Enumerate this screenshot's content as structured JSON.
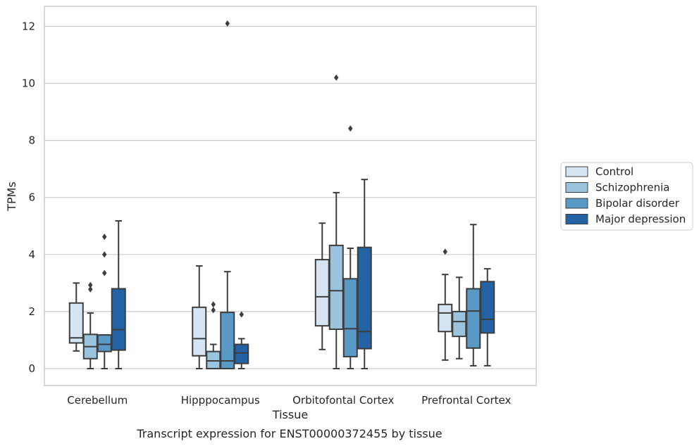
{
  "chart_data": {
    "type": "box",
    "title": "Transcript expression for ENST00000372455 by tissue",
    "xlabel": "Tissue",
    "ylabel": "TPMs",
    "ylim": [
      -0.6,
      12.7
    ],
    "yticks": [
      0,
      2,
      4,
      6,
      8,
      10,
      12
    ],
    "grid": "horizontal",
    "legend_position": "right",
    "categories": [
      "Cerebellum",
      "Hipppocampus",
      "Orbitofontal Cortex",
      "Prefrontal Cortex"
    ],
    "series": [
      {
        "name": "Control",
        "color": "#d6e5f3",
        "boxes": [
          {
            "whislo": 0.62,
            "q1": 0.9,
            "med": 1.08,
            "q3": 2.3,
            "whishi": 3.0,
            "fliers": []
          },
          {
            "whislo": 0.0,
            "q1": 0.45,
            "med": 1.05,
            "q3": 2.15,
            "whishi": 3.6,
            "fliers": []
          },
          {
            "whislo": 0.67,
            "q1": 1.5,
            "med": 2.52,
            "q3": 3.82,
            "whishi": 5.1,
            "fliers": []
          },
          {
            "whislo": 0.3,
            "q1": 1.3,
            "med": 1.95,
            "q3": 2.25,
            "whishi": 3.3,
            "fliers": [
              4.1
            ]
          }
        ]
      },
      {
        "name": "Schizophrenia",
        "color": "#9ac3de",
        "boxes": [
          {
            "whislo": 0.0,
            "q1": 0.35,
            "med": 0.77,
            "q3": 1.2,
            "whishi": 1.95,
            "fliers": [
              2.78,
              2.93
            ]
          },
          {
            "whislo": 0.0,
            "q1": 0.0,
            "med": 0.27,
            "q3": 0.6,
            "whishi": 0.85,
            "fliers": [
              2.05,
              2.25
            ]
          },
          {
            "whislo": 0.0,
            "q1": 1.38,
            "med": 2.73,
            "q3": 4.32,
            "whishi": 6.17,
            "fliers": [
              10.2
            ]
          },
          {
            "whislo": 0.35,
            "q1": 1.13,
            "med": 1.65,
            "q3": 2.0,
            "whishi": 3.2,
            "fliers": []
          }
        ]
      },
      {
        "name": "Bipolar disorder",
        "color": "#5899c6",
        "boxes": [
          {
            "whislo": 0.0,
            "q1": 0.6,
            "med": 0.85,
            "q3": 1.18,
            "whishi": 1.18,
            "fliers": [
              3.35,
              4.0,
              4.62
            ]
          },
          {
            "whislo": 0.0,
            "q1": 0.0,
            "med": 0.27,
            "q3": 1.97,
            "whishi": 3.4,
            "fliers": [
              12.1
            ]
          },
          {
            "whislo": 0.0,
            "q1": 0.42,
            "med": 1.4,
            "q3": 3.15,
            "whishi": 4.22,
            "fliers": [
              8.42
            ]
          },
          {
            "whislo": 0.1,
            "q1": 0.72,
            "med": 2.02,
            "q3": 2.8,
            "whishi": 5.05,
            "fliers": []
          }
        ]
      },
      {
        "name": "Major depression",
        "color": "#2462a6",
        "boxes": [
          {
            "whislo": 0.0,
            "q1": 0.65,
            "med": 1.37,
            "q3": 2.8,
            "whishi": 5.18,
            "fliers": []
          },
          {
            "whislo": 0.0,
            "q1": 0.18,
            "med": 0.55,
            "q3": 0.85,
            "whishi": 1.05,
            "fliers": [
              1.9
            ]
          },
          {
            "whislo": 0.0,
            "q1": 0.7,
            "med": 1.3,
            "q3": 4.25,
            "whishi": 6.63,
            "fliers": []
          },
          {
            "whislo": 0.1,
            "q1": 1.25,
            "med": 1.73,
            "q3": 3.05,
            "whishi": 3.5,
            "fliers": []
          }
        ]
      }
    ]
  }
}
